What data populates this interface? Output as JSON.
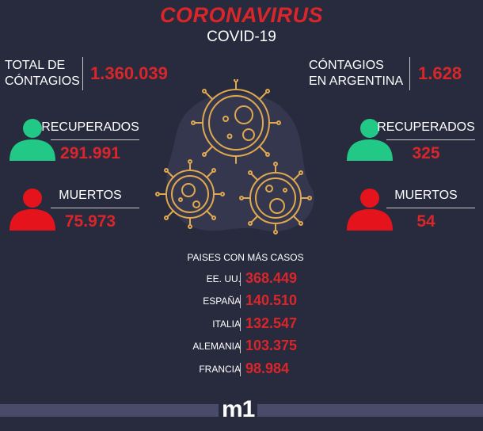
{
  "header": {
    "title": "CORONAVIRUS",
    "subtitle": "COVID-19"
  },
  "world": {
    "total_label_1": "TOTAL DE",
    "total_label_2": "CÓNTAGIOS",
    "total_value": "1.360.039",
    "recovered_label": "RECUPERADOS",
    "recovered_value": "291.991",
    "deaths_label": "MUERTOS",
    "deaths_value": "75.973"
  },
  "argentina": {
    "total_label_1": "CÓNTAGIOS",
    "total_label_2": "EN ARGENTINA",
    "total_value": "1.628",
    "recovered_label": "RECUPERADOS",
    "recovered_value": "325",
    "deaths_label": "MUERTOS",
    "deaths_value": "54"
  },
  "countries": {
    "heading": "PAISES CON MÁS CASOS",
    "items": [
      {
        "name": "EE. UU.",
        "value": "368.449"
      },
      {
        "name": "ESPAÑA",
        "value": "140.510"
      },
      {
        "name": "ITALIA",
        "value": "132.547"
      },
      {
        "name": "ALEMANIA",
        "value": "103.375"
      },
      {
        "name": "FRANCIA",
        "value": "98.984"
      }
    ]
  },
  "footer": {
    "logo": "m1"
  },
  "colors": {
    "background": "#282a3d",
    "accent_red": "#d9262b",
    "recovered_green": "#22c986",
    "virus_gold": "#e0a94f",
    "footer_band": "#4a4a6a"
  },
  "icons": {
    "recovered": "person-icon",
    "deaths": "person-icon",
    "virus": "virus-illustration"
  }
}
